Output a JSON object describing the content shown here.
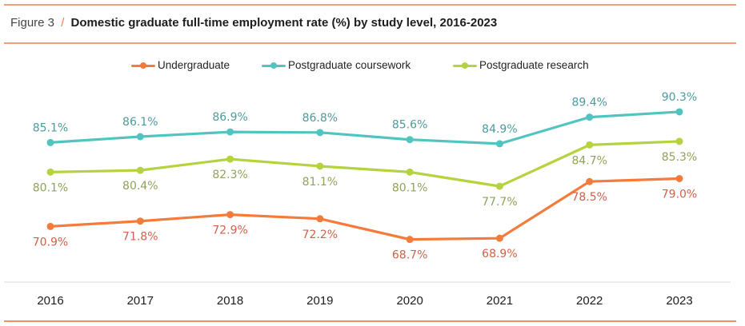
{
  "figure": {
    "number_label": "Figure 3",
    "separator": "/",
    "title": "Domestic graduate full-time employment rate (%) by study level, 2016-2023"
  },
  "colors": {
    "rule": "#f0a07a",
    "undergraduate": "#f47b3c",
    "postgraduate_coursework": "#52c4c0",
    "postgraduate_research": "#b5d33f",
    "label_undergraduate": "#d0624a",
    "label_postgraduate_coursework": "#4f9a9c",
    "label_postgraduate_research": "#8ea35a"
  },
  "chart_data": {
    "type": "line",
    "title": "Domestic graduate full-time employment rate (%) by study level, 2016-2023",
    "xlabel": "",
    "ylabel": "",
    "x": [
      "2016",
      "2017",
      "2018",
      "2019",
      "2020",
      "2021",
      "2022",
      "2023"
    ],
    "ylim": [
      65,
      93
    ],
    "grid": false,
    "legend_position": "top-center",
    "series": [
      {
        "key": "undergraduate",
        "name": "Undergraduate",
        "values": [
          70.9,
          71.8,
          72.9,
          72.2,
          68.7,
          68.9,
          78.5,
          79.0
        ],
        "labels": [
          "70.9%",
          "71.8%",
          "72.9%",
          "72.2%",
          "68.7%",
          "68.9%",
          "78.5%",
          "79.0%"
        ],
        "label_position": "below"
      },
      {
        "key": "postgraduate_coursework",
        "name": "Postgraduate coursework",
        "values": [
          85.1,
          86.1,
          86.9,
          86.8,
          85.6,
          84.9,
          89.4,
          90.3
        ],
        "labels": [
          "85.1%",
          "86.1%",
          "86.9%",
          "86.8%",
          "85.6%",
          "84.9%",
          "89.4%",
          "90.3%"
        ],
        "label_position": "above"
      },
      {
        "key": "postgraduate_research",
        "name": "Postgraduate research",
        "values": [
          80.1,
          80.4,
          82.3,
          81.1,
          80.1,
          77.7,
          84.7,
          85.3
        ],
        "labels": [
          "80.1%",
          "80.4%",
          "82.3%",
          "81.1%",
          "80.1%",
          "77.7%",
          "84.7%",
          "85.3%"
        ],
        "label_position": "below"
      }
    ]
  }
}
